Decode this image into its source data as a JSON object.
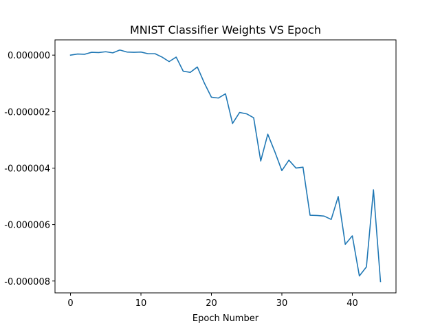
{
  "chart_data": {
    "type": "line",
    "title": "MNIST Classifier Weights VS Epoch",
    "xlabel": "Epoch Number",
    "ylabel": "",
    "xlim": [
      -2.2,
      46.2
    ],
    "ylim": [
      -8.42e-06,
      5.4e-07
    ],
    "x_ticks": [
      0,
      10,
      20,
      30,
      40
    ],
    "y_ticks": [
      0,
      -2e-06,
      -4e-06,
      -6e-06,
      -8e-06
    ],
    "x_tick_labels": [
      "0",
      "10",
      "20",
      "30",
      "40"
    ],
    "y_tick_labels": [
      "0.000000",
      "-0.000002",
      "-0.000004",
      "-0.000006",
      "-0.000008"
    ],
    "grid": false,
    "line_color": "#1f77b4",
    "series": [
      {
        "x": [
          0,
          1,
          2,
          3,
          4,
          5,
          6,
          7,
          8,
          9,
          10,
          11,
          12,
          13,
          14,
          15,
          16,
          17,
          18,
          19,
          20,
          21,
          22,
          23,
          24,
          25,
          26,
          27,
          28,
          29,
          30,
          31,
          32,
          33,
          34,
          35,
          36,
          37,
          38,
          39,
          40,
          41,
          42,
          43,
          44
        ],
        "values": [
          0.0,
          4e-08,
          3e-08,
          1e-07,
          9e-08,
          1.2e-07,
          8e-08,
          1.8e-07,
          1.1e-07,
          1e-07,
          1.1e-07,
          5e-08,
          5e-08,
          -7e-08,
          -2.3e-07,
          -7e-08,
          -5.7e-07,
          -6.1e-07,
          -4.2e-07,
          -9.9e-07,
          -1.49e-06,
          -1.52e-06,
          -1.37e-06,
          -2.42e-06,
          -2.03e-06,
          -2.08e-06,
          -2.22e-06,
          -3.75e-06,
          -2.8e-06,
          -3.42e-06,
          -4.09e-06,
          -3.72e-06,
          -4e-06,
          -3.97e-06,
          -5.67e-06,
          -5.68e-06,
          -5.7e-06,
          -5.82e-06,
          -5.01e-06,
          -6.7e-06,
          -6.4e-06,
          -7.82e-06,
          -7.5e-06,
          -4.77e-06,
          -8.02e-06
        ]
      }
    ]
  }
}
